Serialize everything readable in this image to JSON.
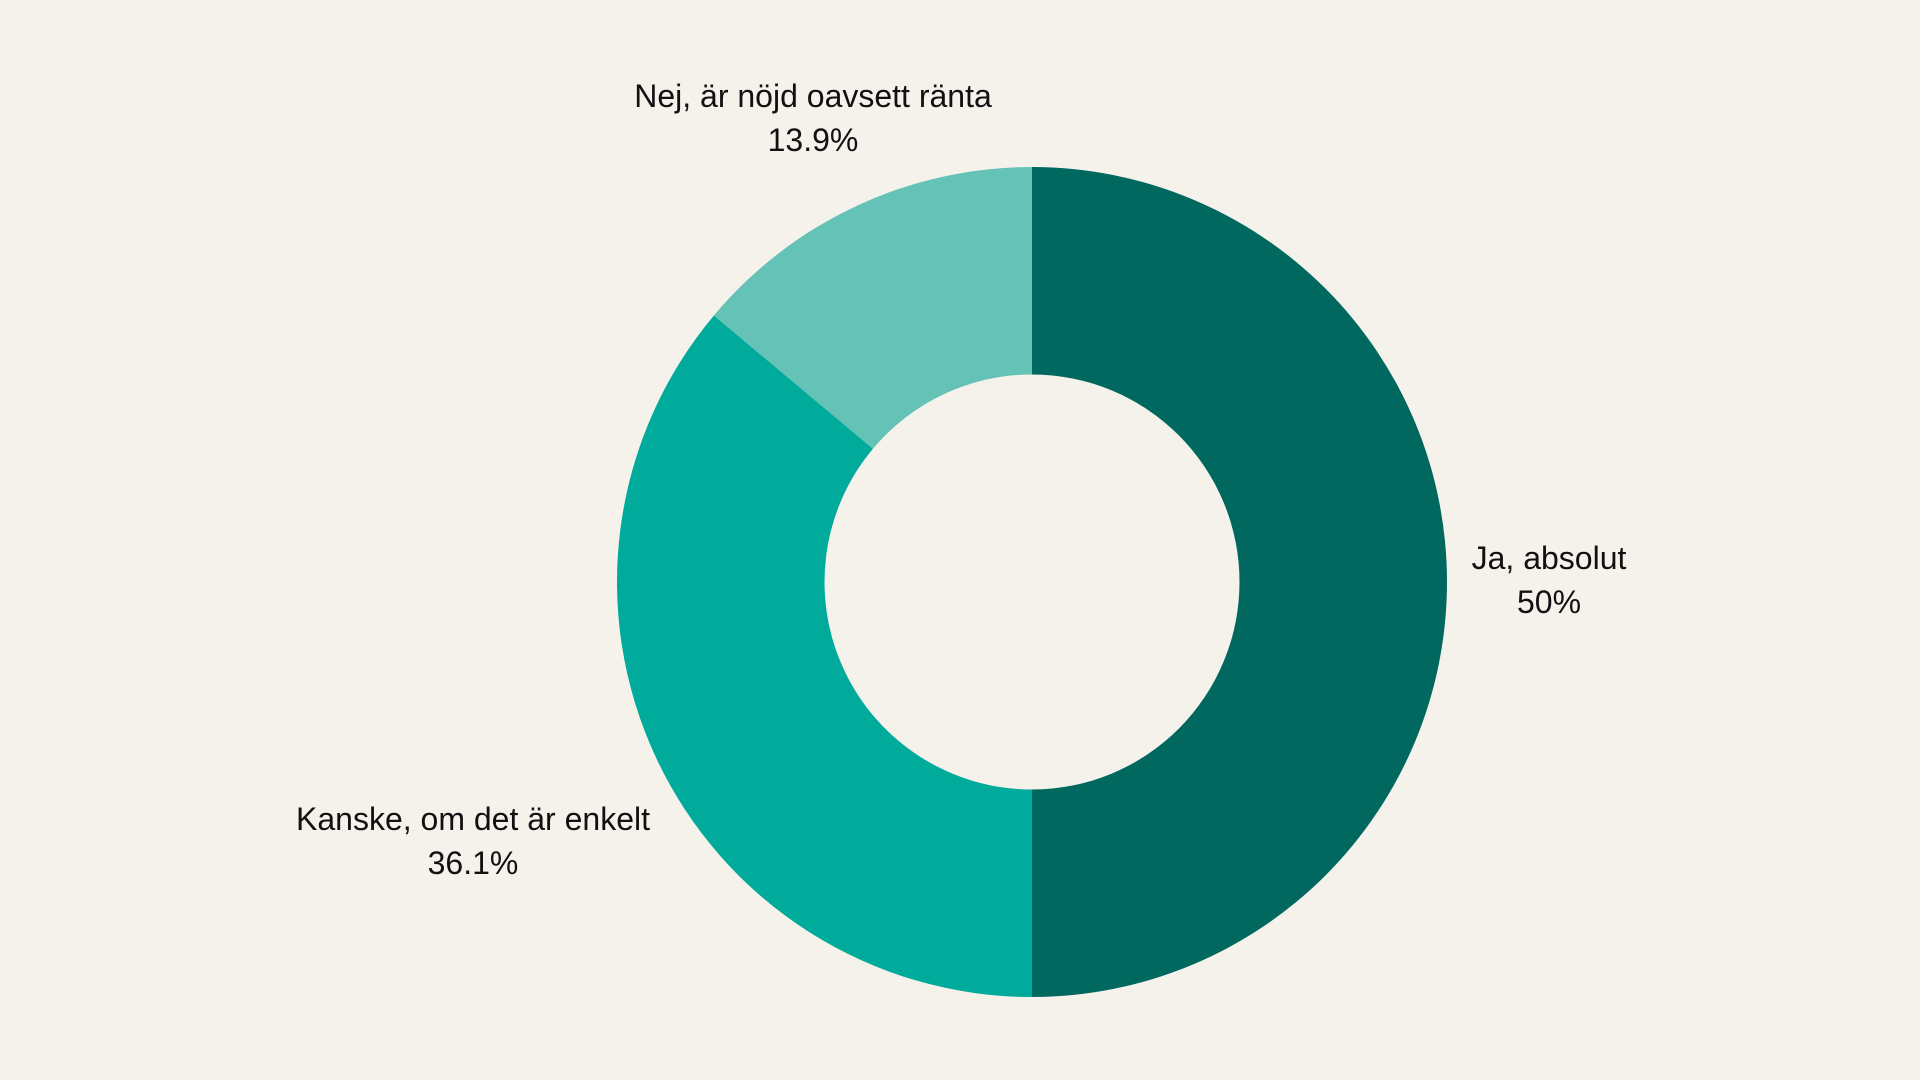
{
  "background_color": "#F5F2EC",
  "chart_data": {
    "type": "pie",
    "variant": "donut",
    "title": "",
    "categories": [
      "Ja, absolut",
      "Kanske, om det är enkelt",
      "Nej, är nöjd oavsett ränta"
    ],
    "values": [
      50,
      36.1,
      13.9
    ],
    "value_labels": [
      "50%",
      "36.1%",
      "13.9%"
    ],
    "colors": [
      "#00685E",
      "#00AB9B",
      "#64C2B6"
    ],
    "start_angle_deg": 0,
    "direction": "clockwise",
    "inner_radius_ratio": 0.5,
    "legend": "none",
    "data_labels": "outside"
  },
  "labels": {
    "ja": {
      "name": "Ja, absolut",
      "value": "50%"
    },
    "kanske": {
      "name": "Kanske, om det är enkelt",
      "value": "36.1%"
    },
    "nej": {
      "name": "Nej, är nöjd oavsett ränta",
      "value": "13.9%"
    }
  }
}
